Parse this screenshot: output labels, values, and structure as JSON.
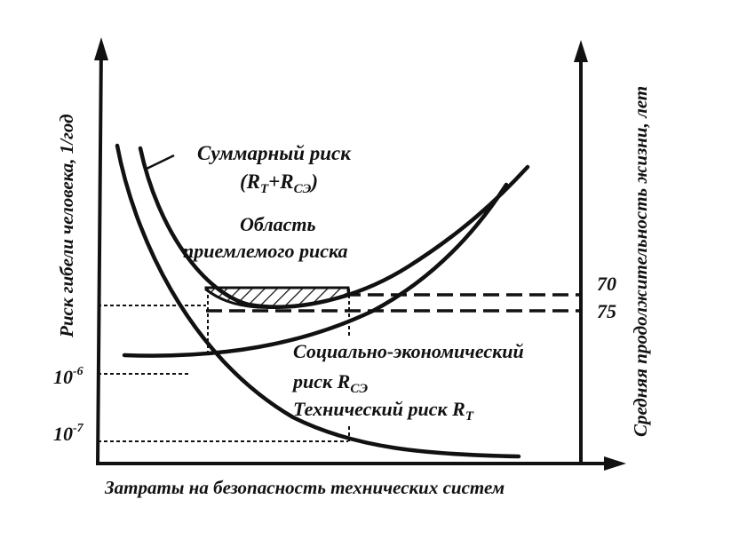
{
  "axes": {
    "y_left_label": "Риск гибели человека, 1/год",
    "y_right_label": "Средняя продолжительность жизни, лет",
    "x_label": "Затраты на безопасность технических систем"
  },
  "ticks": {
    "left_e6_base": "10",
    "left_e6_exp": "-6",
    "left_e7_base": "10",
    "left_e7_exp": "-7",
    "right_70": "70",
    "right_75": "75"
  },
  "labels": {
    "total_risk_line1": "Суммарный риск",
    "total_risk_R1": "(R",
    "total_risk_sub1": "T",
    "total_risk_plus": "+R",
    "total_risk_sub2": "СЭ",
    "total_risk_close": ")",
    "area_line1": "Область",
    "area_line2": "приемлемого риска",
    "socio_line1": "Социально-экономический",
    "socio_line2": "риск R",
    "socio_sub": "СЭ",
    "tech_line": "Технический риск R",
    "tech_sub": "T"
  }
}
